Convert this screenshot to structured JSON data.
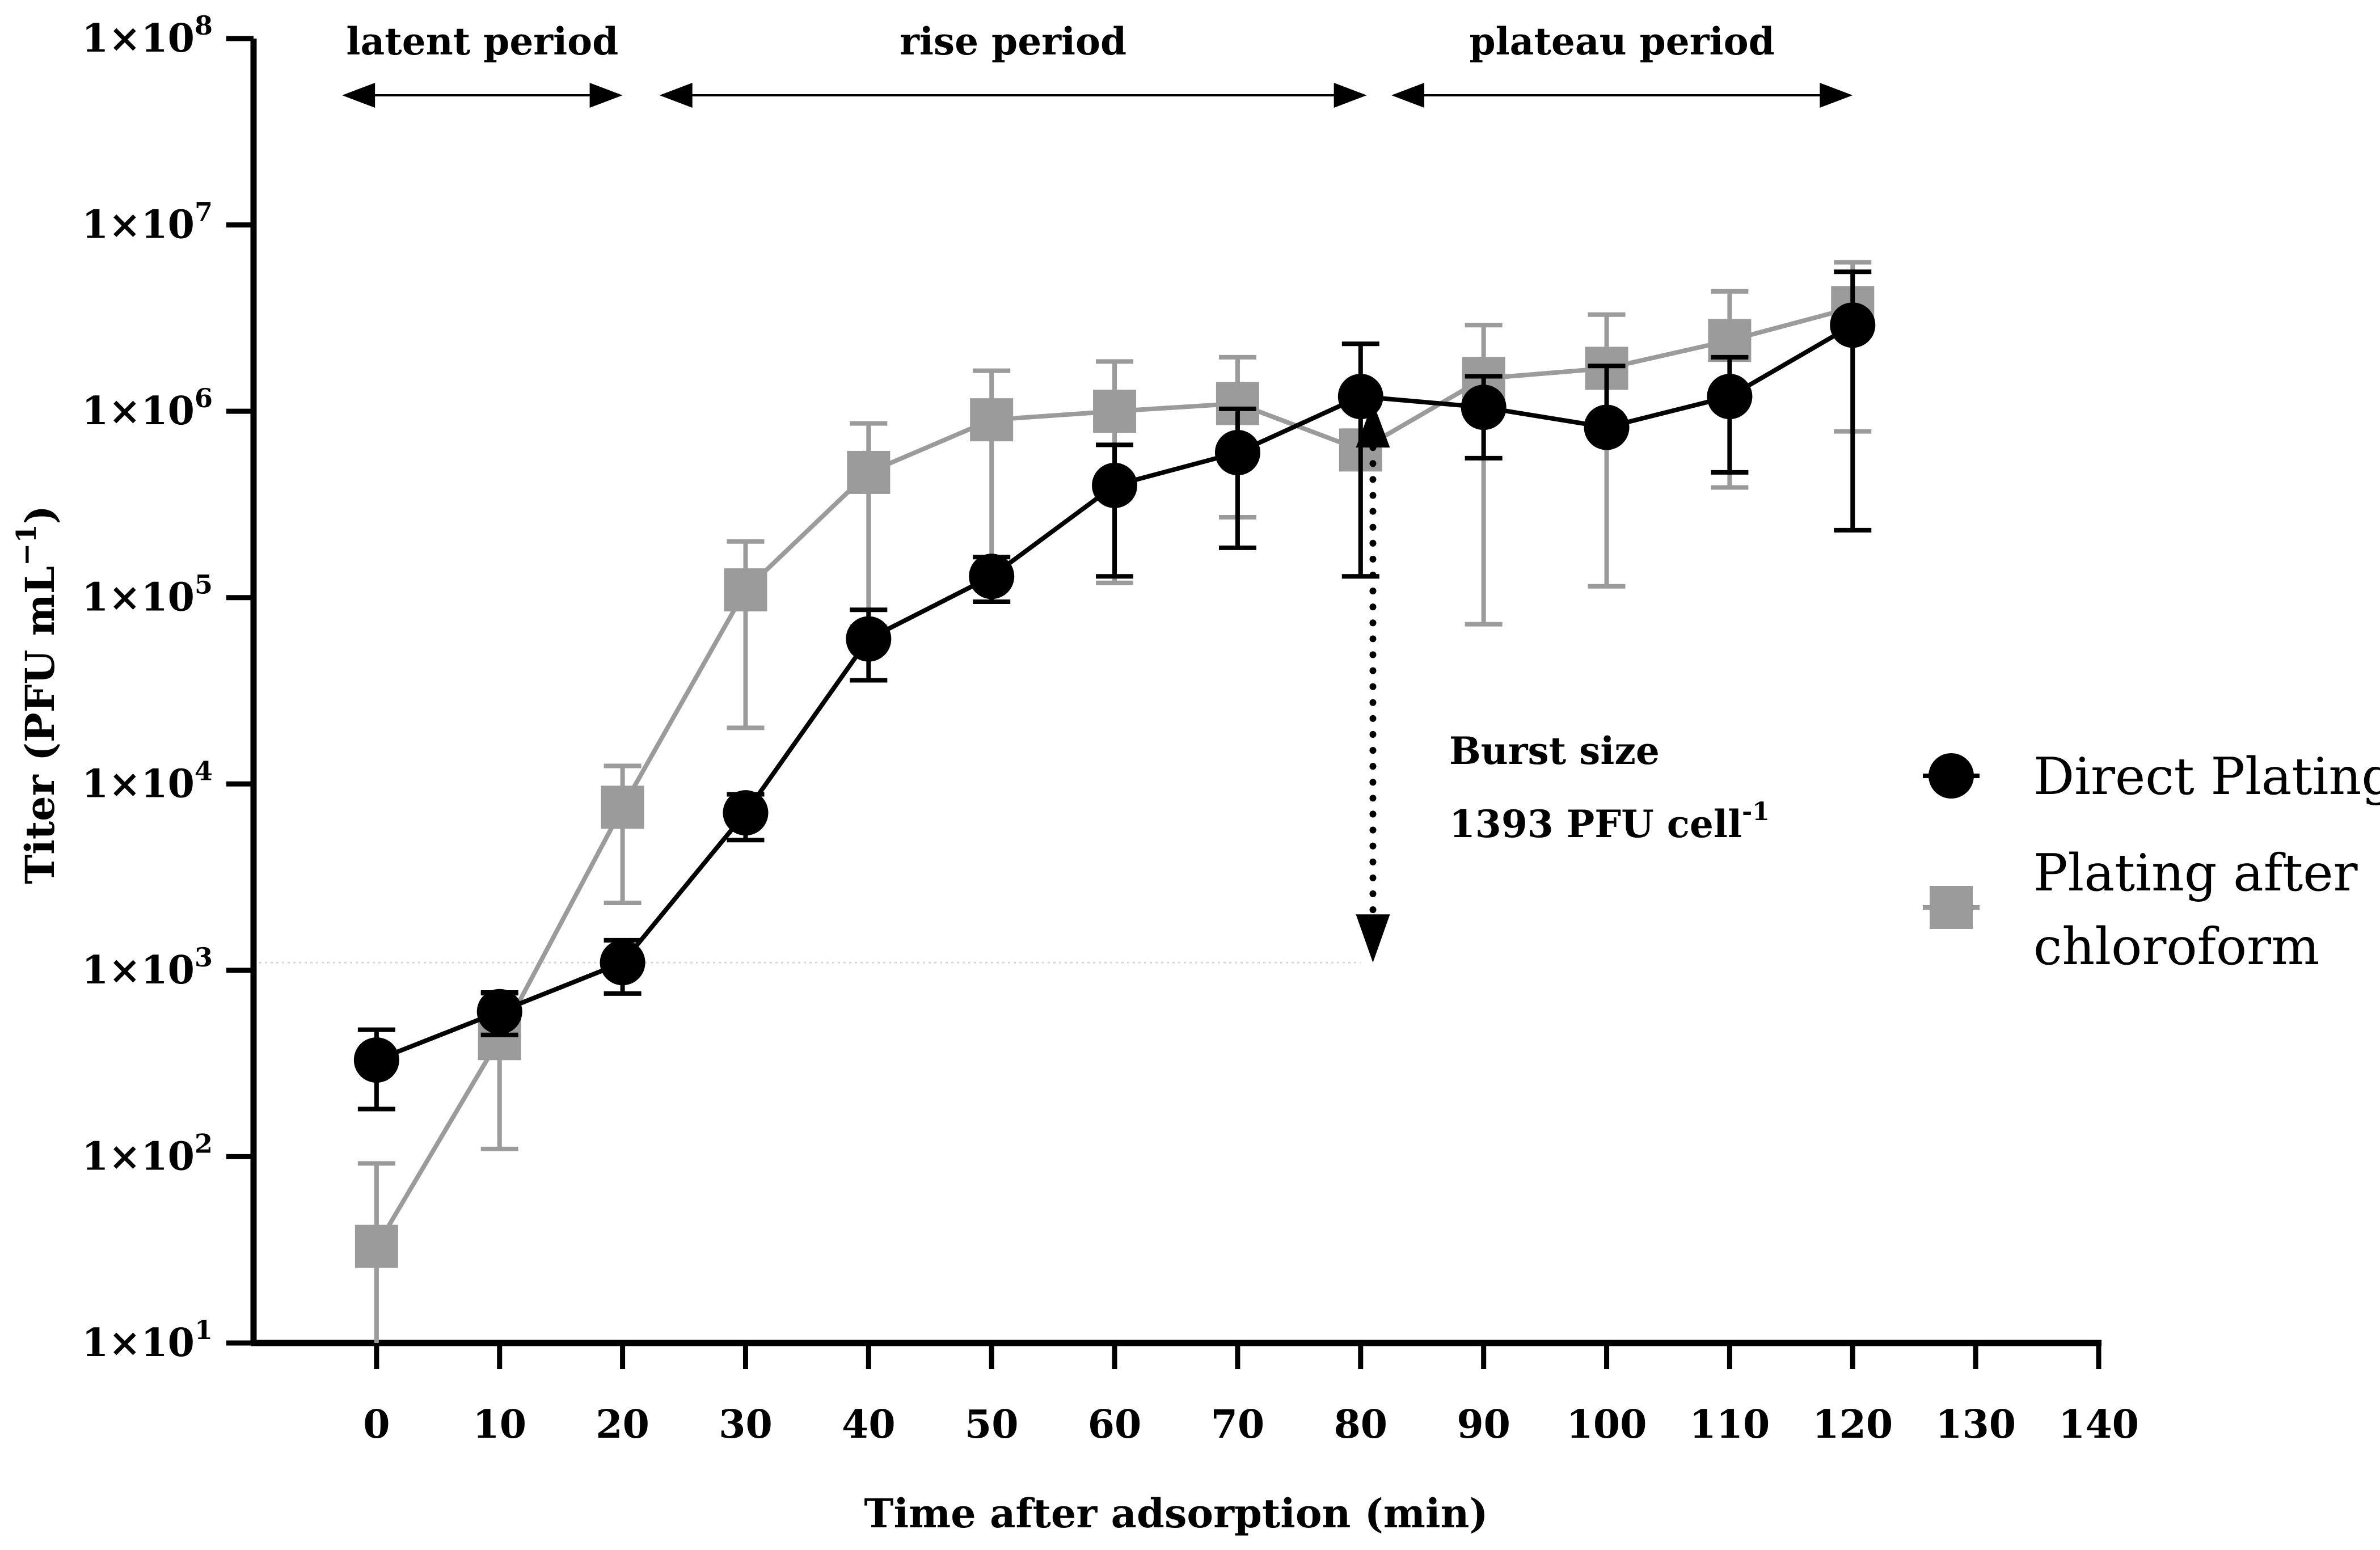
{
  "chart_data": {
    "type": "line",
    "title": "",
    "xlabel": "Time after adsorption (min)",
    "ylabel": "Titer (PFU mL",
    "ylabel_exp": "−1",
    "ylabel_close": ")",
    "yscale": "log",
    "xlim": [
      -10,
      140
    ],
    "ylim": [
      10,
      100000000
    ],
    "xticks": [
      0,
      10,
      20,
      30,
      40,
      50,
      60,
      70,
      80,
      90,
      100,
      110,
      120,
      130,
      140
    ],
    "xtick_labels": [
      "0",
      "10",
      "20",
      "30",
      "40",
      "50",
      "60",
      "70",
      "80",
      "90",
      "100",
      "110",
      "120",
      "130",
      "140"
    ],
    "yticks": [
      {
        "value": 10,
        "base": "1×10",
        "exp": "1"
      },
      {
        "value": 100,
        "base": "1×10",
        "exp": "2"
      },
      {
        "value": 1000,
        "base": "1×10",
        "exp": "3"
      },
      {
        "value": 10000,
        "base": "1×10",
        "exp": "4"
      },
      {
        "value": 100000,
        "base": "1×10",
        "exp": "5"
      },
      {
        "value": 1000000,
        "base": "1×10",
        "exp": "6"
      },
      {
        "value": 10000000,
        "base": "1×10",
        "exp": "7"
      },
      {
        "value": 100000000,
        "base": "1×10",
        "exp": "8"
      }
    ],
    "x": [
      0,
      10,
      20,
      30,
      40,
      50,
      60,
      70,
      80,
      90,
      100,
      110,
      120
    ],
    "series": [
      {
        "name": "Plating after chloroform",
        "legend_lines": [
          "Plating after",
          "chloroform"
        ],
        "color": "#9b9b9b",
        "marker": "square",
        "values": [
          33,
          430,
          7500,
          110000,
          470000,
          900000,
          1000000,
          1100000,
          620000,
          1500000,
          1700000,
          2400000,
          3600000
        ],
        "err_low": [
          0,
          110,
          2300,
          20000,
          70000,
          130000,
          120000,
          270000,
          130000,
          72000,
          115000,
          390000,
          780000
        ],
        "err_high": [
          92,
          750,
          12500,
          200000,
          860000,
          1650000,
          1850000,
          1950000,
          1100000,
          2900000,
          3300000,
          4400000,
          6300000
        ]
      },
      {
        "name": "Direct Plating",
        "legend_lines": [
          "Direct Plating"
        ],
        "color": "#000000",
        "marker": "circle",
        "values": [
          330,
          600,
          1100,
          7000,
          60000,
          130000,
          400000,
          600000,
          1200000,
          1050000,
          820000,
          1200000,
          2900000
        ],
        "err_low": [
          180,
          450,
          750,
          5000,
          36000,
          95000,
          130000,
          185000,
          130000,
          560000,
          820000,
          470000,
          230000
        ],
        "err_high": [
          480,
          760,
          1450,
          8800,
          86000,
          165000,
          660000,
          1030000,
          2300000,
          1540000,
          1750000,
          1950000,
          5600000
        ]
      }
    ],
    "periods": [
      {
        "label": "latent period",
        "x_start": -2.8,
        "x_end": 20
      },
      {
        "label": "rise period",
        "x_start": 23,
        "x_end": 80.5
      },
      {
        "label": "plateau period",
        "x_start": 82.5,
        "x_end": 120
      }
    ],
    "burst": {
      "label_line1": "Burst size",
      "label_line2": "1393 PFU cell",
      "label_line2_exp": "-1",
      "x": 81,
      "y_top": 1200000,
      "y_bottom": 1100
    },
    "reference_line": {
      "y": 1100,
      "x_start": -10,
      "x_end": 80
    },
    "legend_position": "right"
  }
}
